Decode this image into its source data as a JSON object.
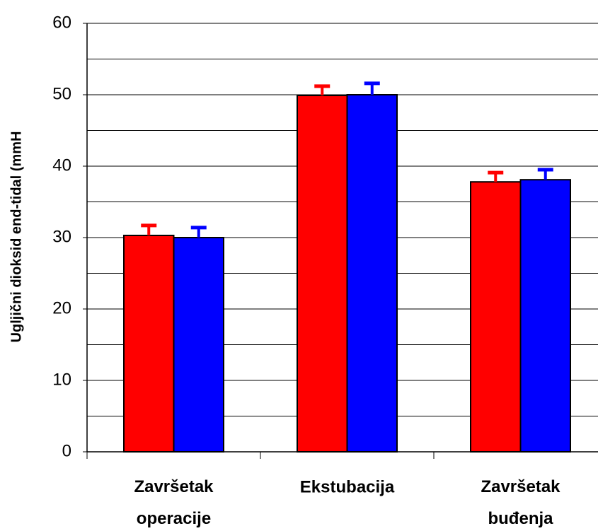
{
  "chart_data": {
    "type": "bar",
    "y_label": "Ugljični dioksid end-tidal (mmH",
    "categories": [
      "Završetak operacije",
      "Ekstubacija",
      "Završetak buđenja"
    ],
    "series": [
      {
        "color": "#ff0000",
        "values": [
          30.3,
          49.9,
          37.8
        ],
        "errors": [
          1.4,
          1.3,
          1.3
        ]
      },
      {
        "color": "#0000ff",
        "values": [
          30.0,
          50.0,
          38.1
        ],
        "errors": [
          1.4,
          1.6,
          1.4
        ]
      }
    ],
    "ylim": [
      0,
      60
    ],
    "yticks": [
      0,
      10,
      20,
      30,
      40,
      50,
      60
    ],
    "ygrid": [
      5,
      10,
      15,
      20,
      25,
      30,
      35,
      40,
      45,
      50,
      55,
      60
    ],
    "grid": true
  }
}
